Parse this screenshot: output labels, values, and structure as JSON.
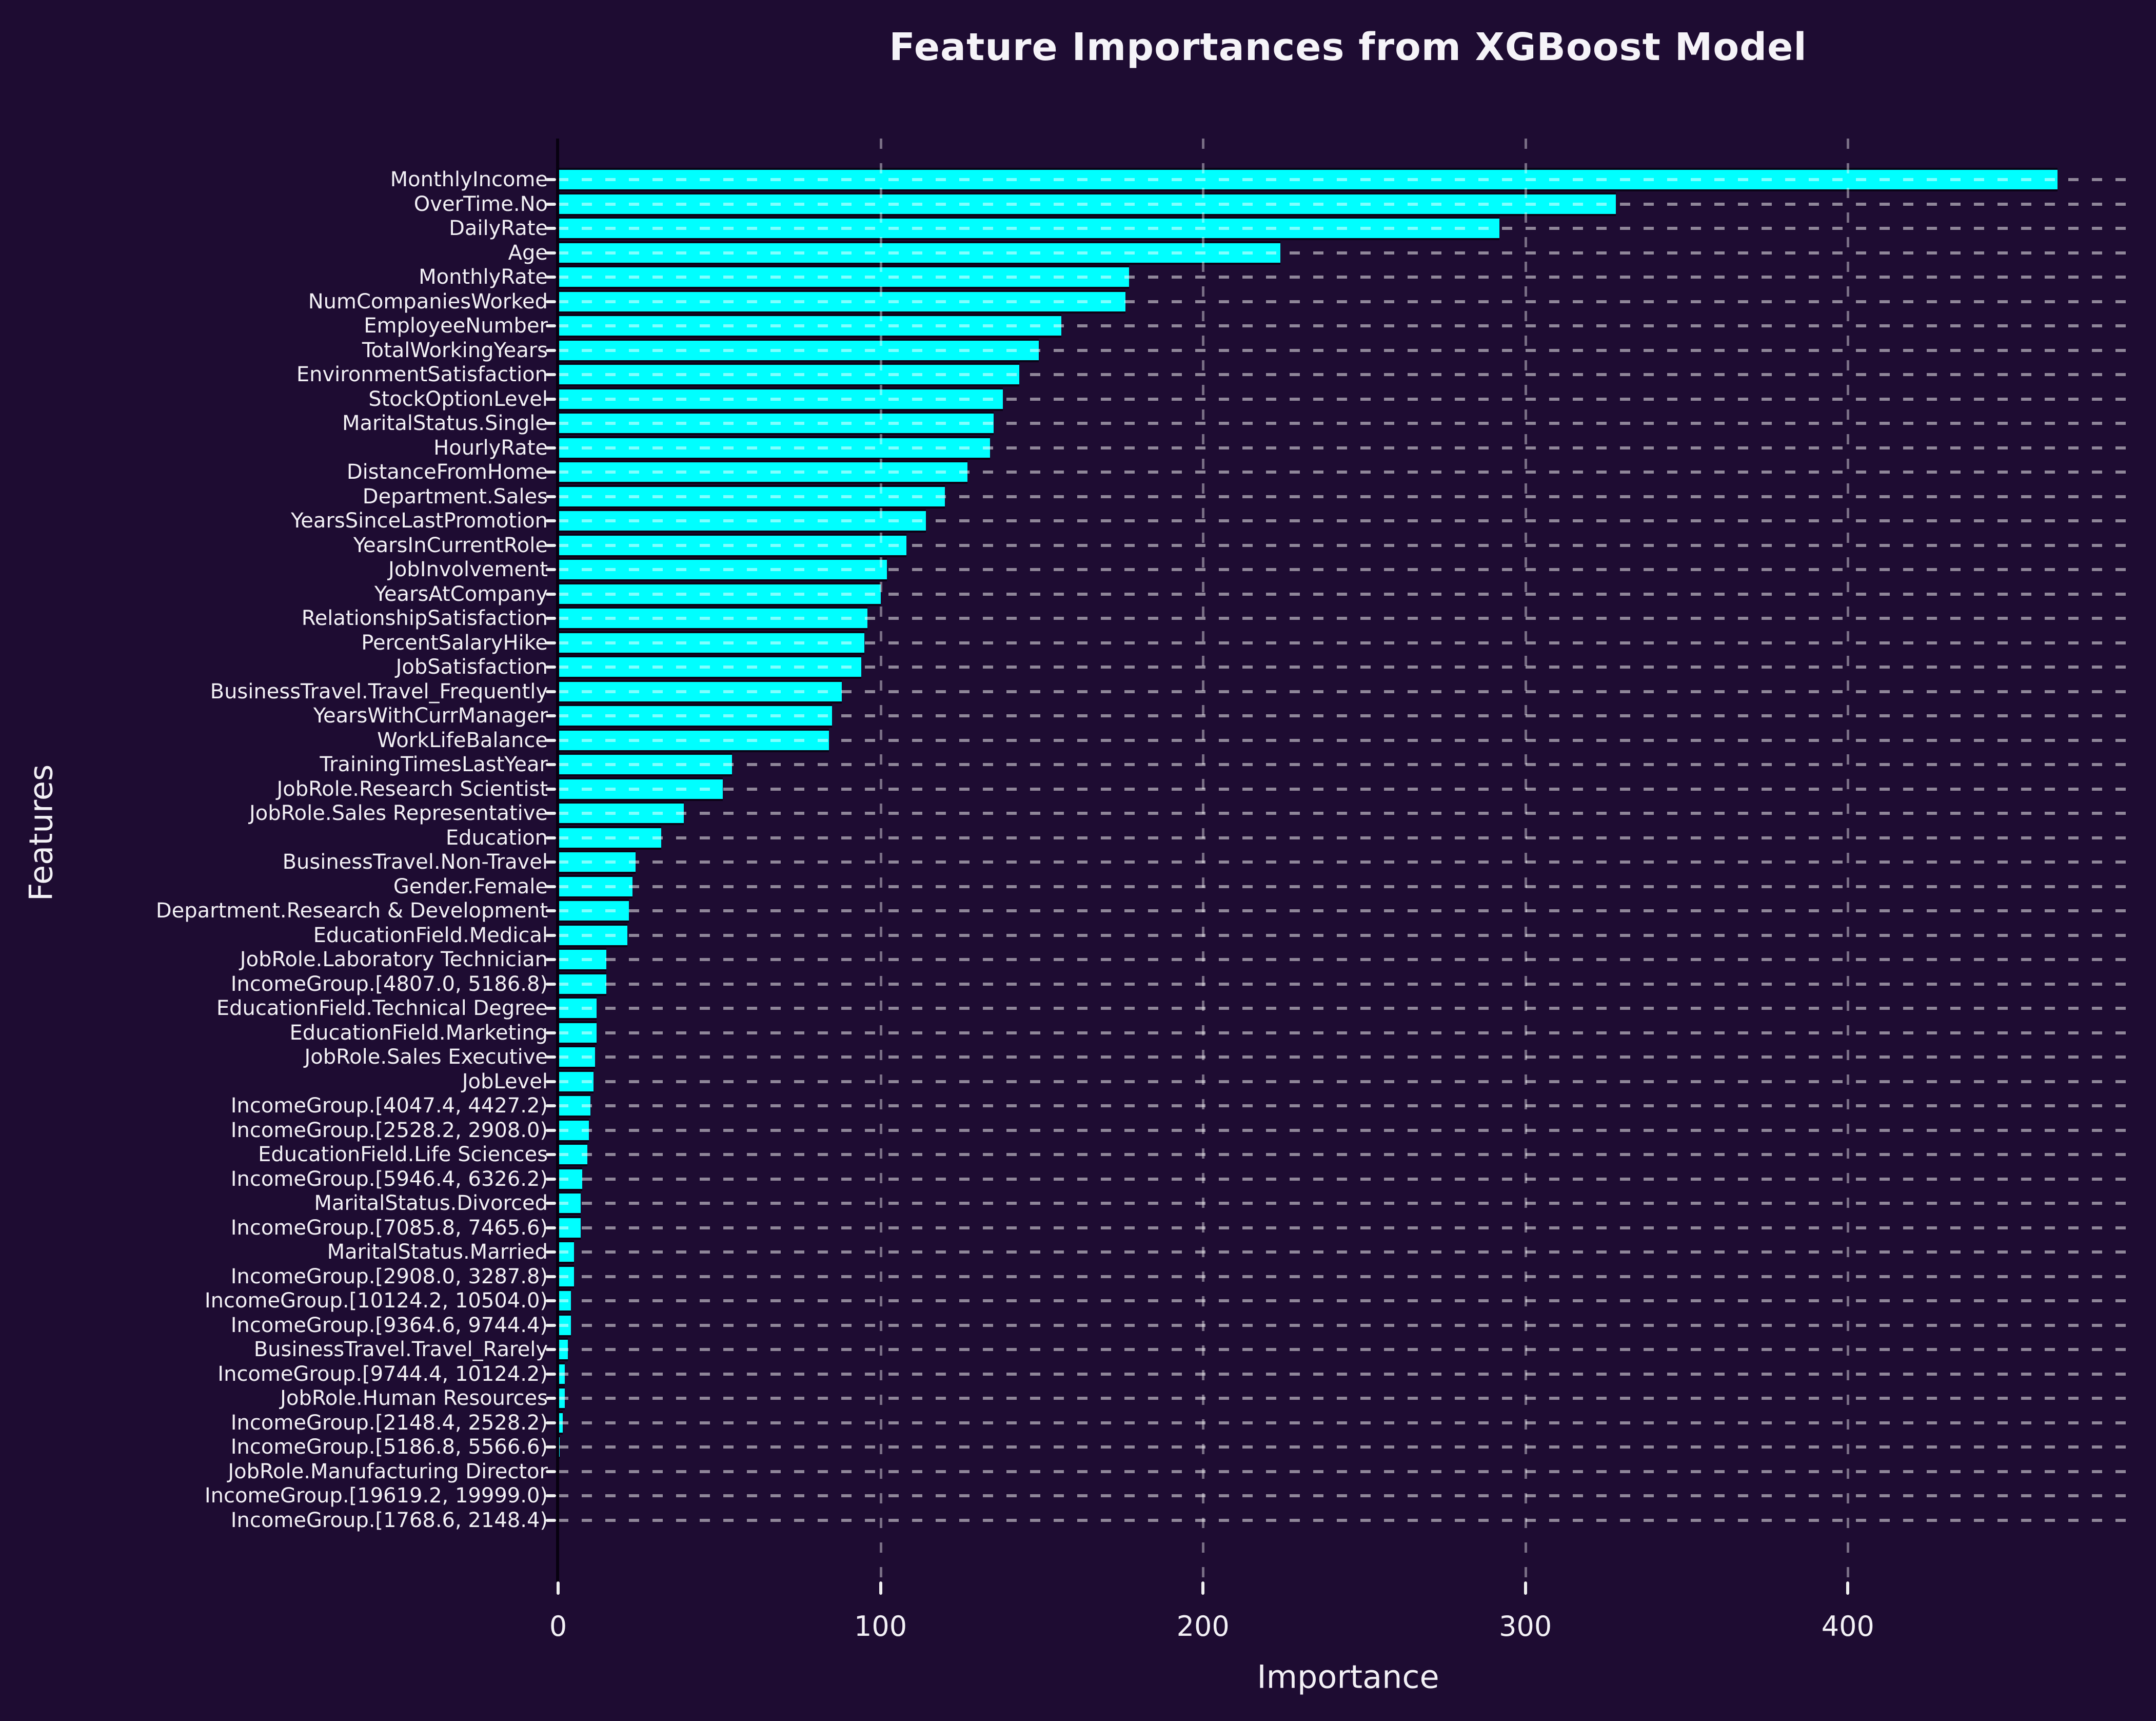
{
  "page": {
    "background_color": "#1e0c32",
    "text_color": "#f2f0f5"
  },
  "chart_data": {
    "type": "bar",
    "orientation": "horizontal",
    "title": "Feature Importances from XGBoost Model",
    "xlabel": "Importance",
    "ylabel": "Features",
    "bar_color": "#00ffff",
    "bar_edge_color": "#0b0215",
    "grid": true,
    "grid_style": "dashed-white",
    "legend": "none",
    "xticks": [
      0,
      100,
      200,
      300,
      400
    ],
    "xlim": [
      0,
      490
    ],
    "categories": [
      "MonthlyIncome",
      "OverTime.No",
      "DailyRate",
      "Age",
      "MonthlyRate",
      "NumCompaniesWorked",
      "EmployeeNumber",
      "TotalWorkingYears",
      "EnvironmentSatisfaction",
      "StockOptionLevel",
      "MaritalStatus.Single",
      "HourlyRate",
      "DistanceFromHome",
      "Department.Sales",
      "YearsSinceLastPromotion",
      "YearsInCurrentRole",
      "JobInvolvement",
      "YearsAtCompany",
      "RelationshipSatisfaction",
      "PercentSalaryHike",
      "JobSatisfaction",
      "BusinessTravel.Travel_Frequently",
      "YearsWithCurrManager",
      "WorkLifeBalance",
      "TrainingTimesLastYear",
      "JobRole.Research Scientist",
      "JobRole.Sales Representative",
      "Education",
      "BusinessTravel.Non-Travel",
      "Gender.Female",
      "Department.Research & Development",
      "EducationField.Medical",
      "JobRole.Laboratory Technician",
      "IncomeGroup.[4807.0, 5186.8)",
      "EducationField.Technical Degree",
      "EducationField.Marketing",
      "JobRole.Sales Executive",
      "JobLevel",
      "IncomeGroup.[4047.4, 4427.2)",
      "IncomeGroup.[2528.2, 2908.0)",
      "EducationField.Life Sciences",
      "IncomeGroup.[5946.4, 6326.2)",
      "MaritalStatus.Divorced",
      "IncomeGroup.[7085.8, 7465.6)",
      "MaritalStatus.Married",
      "IncomeGroup.[2908.0, 3287.8)",
      "IncomeGroup.[10124.2, 10504.0)",
      "IncomeGroup.[9364.6, 9744.4)",
      "BusinessTravel.Travel_Rarely",
      "IncomeGroup.[9744.4, 10124.2)",
      "JobRole.Human Resources",
      "IncomeGroup.[2148.4, 2528.2)",
      "IncomeGroup.[5186.8, 5566.6)",
      "JobRole.Manufacturing Director",
      "IncomeGroup.[19619.2, 19999.0)",
      "IncomeGroup.[1768.6, 2148.4)"
    ],
    "values": [
      465,
      328,
      292,
      224,
      177,
      176,
      156,
      149,
      143,
      138,
      135,
      134,
      127,
      120,
      114,
      108,
      102,
      100,
      96,
      95,
      94,
      88,
      85,
      84,
      54,
      51,
      39,
      32,
      24,
      23,
      22,
      21.5,
      15,
      15,
      12,
      12,
      11.5,
      11,
      10,
      9.5,
      9,
      7.5,
      7,
      7,
      5,
      5,
      4,
      4,
      3,
      2,
      2,
      1.5,
      0.5,
      0.3,
      0.2,
      0.1
    ]
  }
}
